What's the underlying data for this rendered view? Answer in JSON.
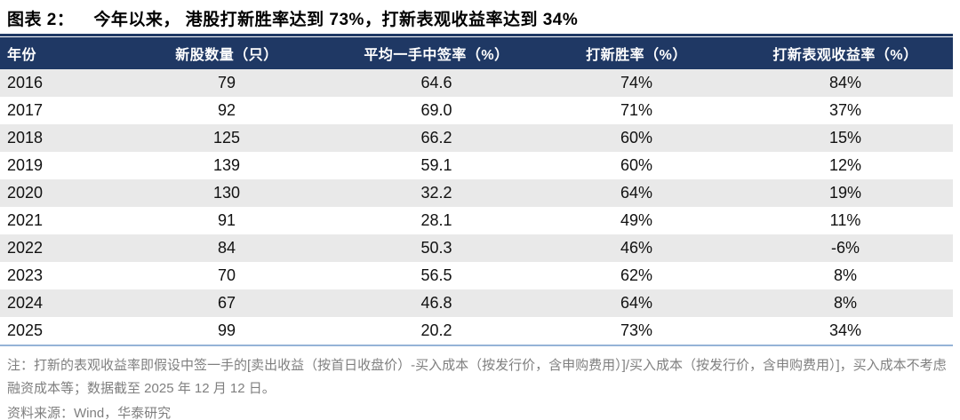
{
  "figure": {
    "label": "图表 2：",
    "title": "今年以来， 港股打新胜率达到 73%，打新表观收益率达到 34%"
  },
  "chart_data": {
    "type": "table",
    "title": "今年以来，港股打新胜率达到73%，打新表观收益率达到34%",
    "columns": [
      "年份",
      "新股数量（只）",
      "平均一手中签率（%）",
      "打新胜率（%）",
      "打新表观收益率（%）"
    ],
    "rows": [
      [
        "2016",
        "79",
        "64.6",
        "74%",
        "84%"
      ],
      [
        "2017",
        "92",
        "69.0",
        "71%",
        "37%"
      ],
      [
        "2018",
        "125",
        "66.2",
        "60%",
        "15%"
      ],
      [
        "2019",
        "139",
        "59.1",
        "60%",
        "12%"
      ],
      [
        "2020",
        "130",
        "32.2",
        "64%",
        "19%"
      ],
      [
        "2021",
        "91",
        "28.1",
        "49%",
        "11%"
      ],
      [
        "2022",
        "84",
        "50.3",
        "46%",
        "-6%"
      ],
      [
        "2023",
        "70",
        "56.5",
        "62%",
        "8%"
      ],
      [
        "2024",
        "67",
        "46.8",
        "64%",
        "8%"
      ],
      [
        "2025",
        "99",
        "20.2",
        "73%",
        "34%"
      ]
    ]
  },
  "notes": {
    "footnote": "注：打新的表观收益率即假设中签一手的[卖出收益（按首日收盘价）-买入成本（按发行价，含申购费用）]/买入成本（按发行价，含申购费用）]，买入成本不考虑融资成本等；数据截至 2025 年 12 月 12 日。",
    "source": "资料来源：Wind，华泰研究"
  },
  "colors": {
    "header_bg": "#1F3864",
    "row_stripe": "#E9E9E9",
    "bottom_rule": "#95B3D7",
    "note_text": "#7F7F7F"
  }
}
